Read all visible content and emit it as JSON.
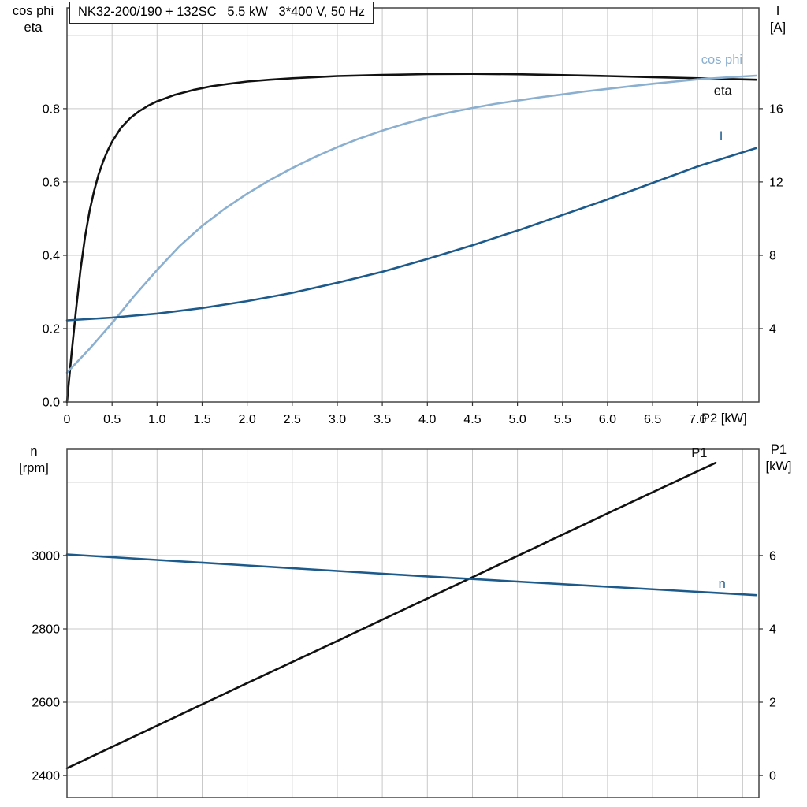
{
  "title_box": {
    "text": "NK32-200/190 + 132SC   5.5 kW   3*400 V, 50 Hz"
  },
  "colors": {
    "black": "#111111",
    "light_blue": "#8aafd0",
    "dark_blue": "#1d5a8c",
    "grid": "#c9c9c9",
    "frame": "#454545",
    "tick": "#333333",
    "text": "#000000"
  },
  "axes_titles": {
    "top_left_line1": "cos phi",
    "top_left_line2": "eta",
    "top_right_line1": "I",
    "top_right_line2": "[A]",
    "top_x": "P2 [kW]",
    "bottom_left_line1": "n",
    "bottom_left_line2": "[rpm]",
    "bottom_right_line1": "P1",
    "bottom_right_line2": "[kW]"
  },
  "chart_data": [
    {
      "type": "line",
      "title": "NK32-200/190 + 132SC 5.5 kW 3*400 V, 50 Hz",
      "xlabel": "P2 [kW]",
      "ylabel_left": "cos phi / eta",
      "ylabel_right": "I [A]",
      "xlim": [
        0,
        7.68
      ],
      "ylim_left": [
        0,
        1.075
      ],
      "ylim_right": [
        0,
        21.5
      ],
      "grid": true,
      "legend_position": "right-inline-labels",
      "x_ticks": [
        {
          "v": 0,
          "label": "0"
        },
        {
          "v": 0.5,
          "label": "0.5"
        },
        {
          "v": 1,
          "label": "1.0"
        },
        {
          "v": 1.5,
          "label": "1.5"
        },
        {
          "v": 2,
          "label": "2.0"
        },
        {
          "v": 2.5,
          "label": "2.5"
        },
        {
          "v": 3,
          "label": "3.0"
        },
        {
          "v": 3.5,
          "label": "3.5"
        },
        {
          "v": 4,
          "label": "4.0"
        },
        {
          "v": 4.5,
          "label": "4.5"
        },
        {
          "v": 5,
          "label": "5.0"
        },
        {
          "v": 5.5,
          "label": "5.5"
        },
        {
          "v": 6,
          "label": "6.0"
        },
        {
          "v": 6.5,
          "label": "6.5"
        },
        {
          "v": 7,
          "label": "7.0"
        }
      ],
      "y_left_ticks": [
        {
          "v": 0,
          "label": "0.0"
        },
        {
          "v": 0.2,
          "label": "0.2"
        },
        {
          "v": 0.4,
          "label": "0.4"
        },
        {
          "v": 0.6,
          "label": "0.6"
        },
        {
          "v": 0.8,
          "label": "0.8"
        }
      ],
      "y_right_ticks": [
        {
          "v": 4,
          "label": "4"
        },
        {
          "v": 8,
          "label": "8"
        },
        {
          "v": 12,
          "label": "12"
        },
        {
          "v": 16,
          "label": "16"
        }
      ],
      "x_grid": [
        0.5,
        1,
        1.5,
        2,
        2.5,
        3,
        3.5,
        4,
        4.5,
        5,
        5.5,
        6,
        6.5,
        7,
        7.5
      ],
      "y_grid_left": [
        0.2,
        0.4,
        0.6,
        0.8,
        1.0
      ],
      "series": [
        {
          "name": "eta",
          "color": "black",
          "axis": "left",
          "points": [
            [
              0,
              0
            ],
            [
              0.05,
              0.13
            ],
            [
              0.1,
              0.25
            ],
            [
              0.15,
              0.36
            ],
            [
              0.2,
              0.45
            ],
            [
              0.25,
              0.52
            ],
            [
              0.3,
              0.575
            ],
            [
              0.35,
              0.62
            ],
            [
              0.4,
              0.655
            ],
            [
              0.45,
              0.685
            ],
            [
              0.5,
              0.71
            ],
            [
              0.6,
              0.748
            ],
            [
              0.7,
              0.774
            ],
            [
              0.8,
              0.793
            ],
            [
              0.9,
              0.808
            ],
            [
              1.0,
              0.82
            ],
            [
              1.2,
              0.838
            ],
            [
              1.4,
              0.851
            ],
            [
              1.6,
              0.861
            ],
            [
              1.8,
              0.868
            ],
            [
              2.0,
              0.874
            ],
            [
              2.25,
              0.879
            ],
            [
              2.5,
              0.883
            ],
            [
              2.75,
              0.886
            ],
            [
              3.0,
              0.889
            ],
            [
              3.5,
              0.892
            ],
            [
              4.0,
              0.8945
            ],
            [
              4.5,
              0.895
            ],
            [
              5.0,
              0.894
            ],
            [
              5.5,
              0.8915
            ],
            [
              6.0,
              0.889
            ],
            [
              6.5,
              0.886
            ],
            [
              7.0,
              0.883
            ],
            [
              7.65,
              0.879
            ]
          ]
        },
        {
          "name": "cos phi",
          "color": "light_blue",
          "axis": "left",
          "points": [
            [
              0,
              0.08
            ],
            [
              0.25,
              0.145
            ],
            [
              0.5,
              0.215
            ],
            [
              0.75,
              0.29
            ],
            [
              1.0,
              0.36
            ],
            [
              1.25,
              0.425
            ],
            [
              1.5,
              0.48
            ],
            [
              1.75,
              0.527
            ],
            [
              2.0,
              0.568
            ],
            [
              2.25,
              0.605
            ],
            [
              2.5,
              0.638
            ],
            [
              2.75,
              0.668
            ],
            [
              3.0,
              0.695
            ],
            [
              3.25,
              0.719
            ],
            [
              3.5,
              0.74
            ],
            [
              3.75,
              0.759
            ],
            [
              4.0,
              0.776
            ],
            [
              4.25,
              0.79
            ],
            [
              4.5,
              0.802
            ],
            [
              4.75,
              0.813
            ],
            [
              5.0,
              0.822
            ],
            [
              5.25,
              0.831
            ],
            [
              5.5,
              0.839
            ],
            [
              5.75,
              0.847
            ],
            [
              6.0,
              0.854
            ],
            [
              6.25,
              0.861
            ],
            [
              6.5,
              0.868
            ],
            [
              6.75,
              0.874
            ],
            [
              7.0,
              0.88
            ],
            [
              7.3,
              0.885
            ],
            [
              7.65,
              0.89
            ]
          ]
        },
        {
          "name": "I",
          "color": "dark_blue",
          "axis": "right",
          "points": [
            [
              0,
              4.45
            ],
            [
              0.5,
              4.6
            ],
            [
              1.0,
              4.82
            ],
            [
              1.5,
              5.12
            ],
            [
              2.0,
              5.5
            ],
            [
              2.5,
              5.95
            ],
            [
              3.0,
              6.5
            ],
            [
              3.5,
              7.1
            ],
            [
              4.0,
              7.8
            ],
            [
              4.5,
              8.55
            ],
            [
              5.0,
              9.35
            ],
            [
              5.5,
              10.2
            ],
            [
              6.0,
              11.05
            ],
            [
              6.5,
              11.95
            ],
            [
              7.0,
              12.85
            ],
            [
              7.65,
              13.85
            ]
          ]
        }
      ],
      "annotations": [
        {
          "text": "cos phi",
          "x": 7.04,
          "y": 0.922,
          "axis": "left",
          "color": "light_blue"
        },
        {
          "text": "eta",
          "x": 7.18,
          "y": 0.837,
          "axis": "left",
          "color": "black"
        },
        {
          "text": "I",
          "x": 7.24,
          "y": 0.714,
          "axis": "left",
          "color": "dark_blue"
        }
      ]
    },
    {
      "type": "line",
      "title": "",
      "xlabel": "P2 [kW]",
      "ylabel_left": "n [rpm]",
      "ylabel_right": "P1 [kW]",
      "xlim": [
        0,
        7.68
      ],
      "ylim_left": [
        2340,
        3290
      ],
      "ylim_right": [
        -0.6,
        8.9
      ],
      "grid": true,
      "legend_position": "right-inline-labels",
      "x_ticks": [],
      "y_left_ticks": [
        {
          "v": 2400,
          "label": "2400"
        },
        {
          "v": 2600,
          "label": "2600"
        },
        {
          "v": 2800,
          "label": "2800"
        },
        {
          "v": 3000,
          "label": "3000"
        }
      ],
      "y_right_ticks": [
        {
          "v": 0,
          "label": "0"
        },
        {
          "v": 2,
          "label": "2"
        },
        {
          "v": 4,
          "label": "4"
        },
        {
          "v": 6,
          "label": "6"
        }
      ],
      "x_grid": [
        0.5,
        1,
        1.5,
        2,
        2.5,
        3,
        3.5,
        4,
        4.5,
        5,
        5.5,
        6,
        6.5,
        7,
        7.5
      ],
      "y_grid_left": [
        2400,
        2600,
        2800,
        3000,
        3200
      ],
      "series": [
        {
          "name": "P1",
          "color": "black",
          "axis": "right",
          "points": [
            [
              0,
              0.2
            ],
            [
              1,
              1.36
            ],
            [
              2,
              2.52
            ],
            [
              3,
              3.67
            ],
            [
              4,
              4.83
            ],
            [
              5,
              5.99
            ],
            [
              6,
              7.15
            ],
            [
              7.2,
              8.53
            ]
          ]
        },
        {
          "name": "n",
          "color": "dark_blue",
          "axis": "left",
          "points": [
            [
              0,
              3003
            ],
            [
              1,
              2988
            ],
            [
              2,
              2973
            ],
            [
              3,
              2958
            ],
            [
              4,
              2943
            ],
            [
              5,
              2929
            ],
            [
              6,
              2915
            ],
            [
              7,
              2901
            ],
            [
              7.65,
              2892
            ]
          ]
        }
      ],
      "annotations": [
        {
          "text": "P1",
          "x": 6.93,
          "y": 8.69,
          "axis": "right",
          "color": "black"
        },
        {
          "text": "n",
          "x": 7.23,
          "y": 2912,
          "axis": "left",
          "color": "dark_blue"
        }
      ]
    }
  ]
}
